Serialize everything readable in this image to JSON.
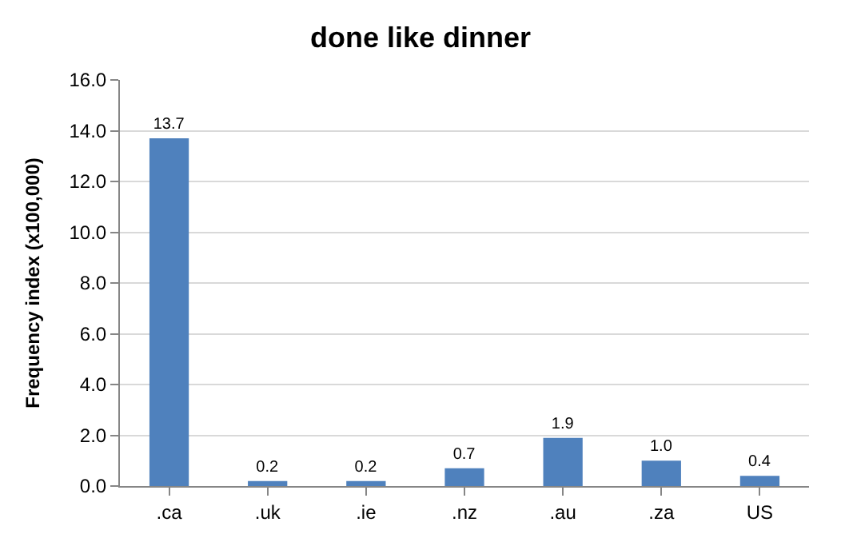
{
  "chart_data": {
    "type": "bar",
    "title": "done like dinner",
    "ylabel": "Frequency index (x100,000)",
    "categories": [
      ".ca",
      ".uk",
      ".ie",
      ".nz",
      ".au",
      ".za",
      "US"
    ],
    "values": [
      13.7,
      0.2,
      0.2,
      0.7,
      1.9,
      1.0,
      0.4
    ],
    "value_labels": [
      "13.7",
      "0.2",
      "0.2",
      "0.7",
      "1.9",
      "1.0",
      "0.4"
    ],
    "color": "#4f81bd",
    "ylim": [
      0,
      16
    ],
    "yticks": [
      {
        "value": 0,
        "label": "0.0"
      },
      {
        "value": 2,
        "label": "2.0"
      },
      {
        "value": 4,
        "label": "4.0"
      },
      {
        "value": 6,
        "label": "6.0"
      },
      {
        "value": 8,
        "label": "8.0"
      },
      {
        "value": 10,
        "label": "10.0"
      },
      {
        "value": 12,
        "label": "12.0"
      },
      {
        "value": 14,
        "label": "14.0"
      },
      {
        "value": 16,
        "label": "16.0"
      }
    ],
    "grid": "y",
    "legend": false
  }
}
